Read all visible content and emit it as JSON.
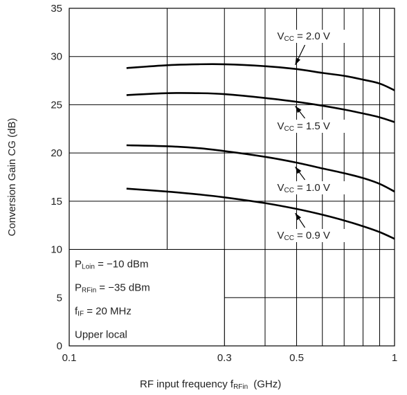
{
  "chart_data": {
    "type": "line",
    "x_scale": "log",
    "xlim": [
      0.1,
      1
    ],
    "ylim": [
      0,
      35
    ],
    "grid": true,
    "xlabel_main": "RF input frequency  f",
    "xlabel_sub": "RFin",
    "xlabel_unit": "(GHz)",
    "ylabel": "Conversion Gain  CG  (dB)",
    "xticks": [
      0.1,
      0.3,
      0.5,
      1
    ],
    "xtick_labels": [
      "0.1",
      "0.3",
      "0.5",
      "1"
    ],
    "yticks": [
      0,
      5,
      10,
      15,
      20,
      25,
      30,
      35
    ],
    "ytick_labels": [
      "0",
      "5",
      "10",
      "15",
      "20",
      "25",
      "30",
      "35"
    ],
    "series": [
      {
        "name": "VCC = 2.0 V",
        "label_main": "V",
        "label_sub": "CC",
        "label_value": "= 2.0 V",
        "x": [
          0.15,
          0.2,
          0.25,
          0.3,
          0.4,
          0.5,
          0.6,
          0.7,
          0.8,
          0.9,
          1.0
        ],
        "y": [
          28.8,
          29.1,
          29.2,
          29.2,
          29.0,
          28.7,
          28.3,
          28.0,
          27.6,
          27.2,
          26.5
        ]
      },
      {
        "name": "VCC = 1.5 V",
        "label_main": "V",
        "label_sub": "CC",
        "label_value": "= 1.5 V",
        "x": [
          0.15,
          0.2,
          0.25,
          0.3,
          0.4,
          0.5,
          0.6,
          0.7,
          0.8,
          0.9,
          1.0
        ],
        "y": [
          26.0,
          26.2,
          26.2,
          26.1,
          25.7,
          25.3,
          24.9,
          24.5,
          24.1,
          23.7,
          23.2
        ]
      },
      {
        "name": "VCC = 1.0 V",
        "label_main": "V",
        "label_sub": "CC",
        "label_value": "= 1.0 V",
        "x": [
          0.15,
          0.2,
          0.25,
          0.3,
          0.4,
          0.5,
          0.6,
          0.7,
          0.8,
          0.9,
          1.0
        ],
        "y": [
          20.8,
          20.7,
          20.5,
          20.2,
          19.6,
          19.0,
          18.4,
          17.9,
          17.4,
          16.8,
          16.0
        ]
      },
      {
        "name": "VCC = 0.9 V",
        "label_main": "V",
        "label_sub": "CC",
        "label_value": "= 0.9 V",
        "x": [
          0.15,
          0.2,
          0.25,
          0.3,
          0.4,
          0.5,
          0.6,
          0.7,
          0.8,
          0.9,
          1.0
        ],
        "y": [
          16.3,
          16.0,
          15.7,
          15.4,
          14.8,
          14.2,
          13.6,
          13.0,
          12.4,
          11.8,
          11.1
        ]
      }
    ],
    "conditions": [
      {
        "main": "P",
        "sub": "Loin",
        "rest": " = −10 dBm"
      },
      {
        "main": "P",
        "sub": "RFin",
        "rest": " = −35 dBm"
      },
      {
        "main": "f",
        "sub": "IF",
        "rest": " = 20 MHz"
      },
      {
        "main": "Upper local",
        "sub": "",
        "rest": ""
      }
    ]
  }
}
